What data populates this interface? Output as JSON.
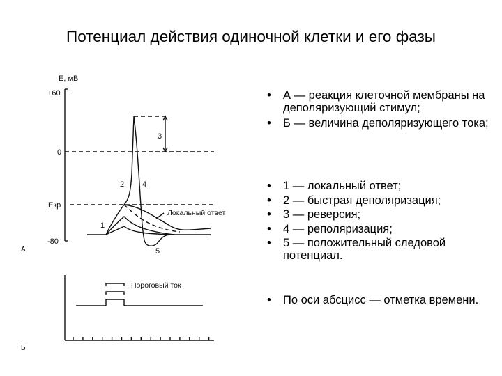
{
  "title": "Потенциал действия одиночной клетки и его фазы",
  "figure": {
    "panel_a": {
      "panel_label": "А",
      "y_axis_label": "Е, мВ",
      "ticks": [
        "+60",
        "0",
        "Екр",
        "-80"
      ],
      "phase_labels": [
        "1",
        "2",
        "3",
        "4",
        "5"
      ],
      "local_response_label": "Локальный ответ"
    },
    "panel_b": {
      "panel_label": "Б",
      "threshold_label": "Пороговый ток"
    }
  },
  "bullets_group1": [
    "А — реакция клеточной мембраны на деполяризующий стимул;",
    "Б — величина деполяризующего тока;"
  ],
  "bullets_group2": [
    "1 — локальный ответ;",
    "2 — быстрая деполяризация;",
    "3 — реверсия;",
    "4 — реполяризация;",
    "5 — положительный следовой потенциал."
  ],
  "bullets_group3": [
    "По оси абсцисс — отметка времени."
  ]
}
